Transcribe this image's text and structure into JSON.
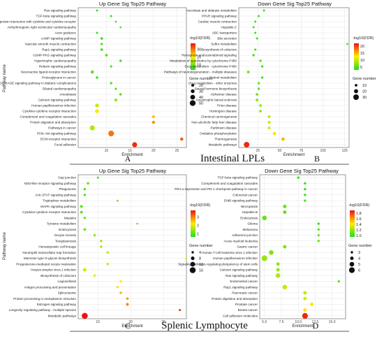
{
  "section_titles": {
    "top": "Intestinal LPLs",
    "bottom": "Splenic Lymphocyte"
  },
  "colors": {
    "low": "#22dd22",
    "mid": "#ffee00",
    "high": "#ee1111",
    "grid": "#e4e4e4"
  },
  "chart_data": [
    {
      "type": "scatter",
      "panel": "A",
      "title": "Up Gene Sig Top25 Pathway",
      "xlabel": "Enrichment",
      "ylabel": "Pathway name",
      "xlim": [
        4,
        27
      ],
      "xticks": [
        10,
        15,
        20,
        25
      ],
      "color_label": "-log10(FDR)",
      "color_ticks": [
        10,
        20,
        30
      ],
      "color_range": [
        3,
        38
      ],
      "size_label": "Gene number",
      "size_ticks": [
        20,
        30,
        40,
        50
      ],
      "size_range": [
        10,
        55
      ],
      "categories": [
        "Ras signaling pathway",
        "TGF-beta signaling pathway",
        "Viral protein interaction with cytokine and cytokine receptor",
        "Arrhythmogenic right ventricular cardiomyopathy",
        "Axon guidance",
        "cAMP signaling pathway",
        "Vascular smooth muscle contraction",
        "Rap1 signaling pathway",
        "cGMP-PKG signaling pathway",
        "Hypertrophic cardiomyopathy",
        "Relaxin signaling pathway",
        "Neuroactive ligand-receptor interaction",
        "Proteoglycans in cancer",
        "AGE-RAGE signaling pathway in diabetic complications",
        "Dilated cardiomyopathy",
        "Amoebiasis",
        "Calcium signaling pathway",
        "Human papillomavirus infection",
        "Cytokine-cytokine receptor interaction",
        "Complement and coagulation cascades",
        "Protein digestion and absorption",
        "Pathways in cancer",
        "PI3K-Akt signaling pathway",
        "ECM-receptor interaction",
        "Focal adhesion"
      ],
      "x": [
        8,
        11,
        12,
        13,
        8,
        9,
        9,
        9,
        10,
        13,
        11,
        7,
        8,
        11,
        12,
        13,
        12,
        8,
        8,
        20,
        20,
        7,
        11,
        26,
        16
      ],
      "fdr": [
        4,
        4,
        4,
        4,
        4,
        6,
        5,
        6,
        7,
        6,
        6,
        8,
        5,
        7,
        6,
        8,
        12,
        16,
        20,
        24,
        28,
        14,
        30,
        32,
        36
      ],
      "gene": [
        12,
        12,
        10,
        10,
        12,
        18,
        14,
        18,
        18,
        16,
        14,
        24,
        16,
        16,
        14,
        16,
        22,
        30,
        32,
        20,
        22,
        42,
        50,
        24,
        42
      ]
    },
    {
      "type": "scatter",
      "panel": "B",
      "title": "Down Gene Sig Top25 Pathway",
      "xlabel": "Enrichment",
      "ylabel": "",
      "xlim": [
        3,
        130
      ],
      "xticks": [
        25,
        50,
        75,
        100,
        125
      ],
      "color_label": "-log10(FDR)",
      "color_ticks": [
        5,
        10,
        15,
        20
      ],
      "color_range": [
        3,
        22
      ],
      "size_label": "Gene number",
      "size_ticks": [
        10,
        20,
        30
      ],
      "size_range": [
        4,
        35
      ],
      "categories": [
        "Ascorbate and aldarate metabolism",
        "PPAR signaling pathway",
        "Cardiac muscle contraction",
        "Hepatitis C",
        "ABC transporters",
        "Bile secretion",
        "Sulfur metabolism",
        "Biosynthesis of cofactors",
        "Retrograde endocannabinoid signaling",
        "Metabolism of xenobiotics by cytochrome P450",
        "Drug metabolism - cytochrome P450",
        "Pathways of neurodegeneration - multiple diseases",
        "Retinol metabolism",
        "Drug metabolism - other enzymes",
        "Steroid hormone biosynthesis",
        "Alzheimer disease",
        "Amyotrophic lateral sclerosis",
        "Prion disease",
        "Huntington disease",
        "Chemical carcinogenesis",
        "Non-alcoholic fatty liver disease",
        "Parkinson disease",
        "Oxidative phosphorylation",
        "Thermogenesis",
        "Metabolic pathways"
      ],
      "x": [
        32,
        26,
        22,
        20,
        22,
        24,
        128,
        22,
        20,
        28,
        30,
        14,
        30,
        26,
        26,
        24,
        24,
        28,
        28,
        38,
        38,
        38,
        44,
        54,
        12
      ],
      "fdr": [
        4,
        4,
        4,
        4,
        4,
        4,
        4,
        5,
        5,
        5,
        5,
        6,
        5,
        6,
        6,
        7,
        7,
        8,
        8,
        10,
        10,
        11,
        13,
        15,
        21
      ],
      "gene": [
        6,
        6,
        6,
        6,
        6,
        6,
        5,
        7,
        8,
        8,
        8,
        10,
        8,
        8,
        8,
        10,
        10,
        10,
        10,
        11,
        11,
        12,
        13,
        14,
        30
      ]
    },
    {
      "type": "scatter",
      "panel": "C",
      "title": "Up Gene Sig Top25 Pathway",
      "xlabel": "Enrichment",
      "ylabel": "Pathway name",
      "xlim": [
        4,
        37
      ],
      "xticks": [
        10,
        20,
        30
      ],
      "color_label": "-log10(FDR)",
      "color_ticks": [
        1,
        2,
        3
      ],
      "color_range": [
        0.6,
        3.8
      ],
      "size_label": "Gene number",
      "size_ticks": [
        4,
        8,
        12,
        16
      ],
      "size_range": [
        2,
        17
      ],
      "categories": [
        "Gap junction",
        "NOD-like receptor signaling pathway",
        "Phagosome",
        "JAK-STAT signaling pathway",
        "Tryptophan metabolism",
        "MAPK signaling pathway",
        "Cytokine-cytokine receptor interaction",
        "Measles",
        "Tyrosine metabolism",
        "Endocytosis",
        "Oocyte meiosis",
        "Toxoplasmosis",
        "Hematopoietic cell lineage",
        "Neutrophil extracellular trap formation",
        "Mannose type O-glycan biosynthesis",
        "Progesterone-mediated oocyte maturation",
        "Herpes simplex virus 1 infection",
        "Biosynthesis of cofactors",
        "Legionellosis",
        "Antigen processing and presentation",
        "Spliceosome",
        "Protein processing in endoplasmic reticulum",
        "Estrogen signaling pathway",
        "Longevity regulating pathway - multiple species",
        "Metabolic pathways"
      ],
      "x": [
        10,
        7,
        6,
        6,
        16,
        5,
        5,
        6,
        22,
        6,
        9,
        11,
        11,
        13,
        37,
        13,
        6,
        9,
        17,
        16,
        17,
        19,
        19,
        35,
        6
      ],
      "fdr": [
        0.9,
        1.0,
        1.0,
        1.0,
        1.1,
        1.0,
        1.0,
        1.1,
        1.1,
        1.2,
        1.4,
        1.5,
        1.6,
        1.7,
        1.8,
        1.8,
        1.9,
        2.0,
        2.2,
        2.3,
        2.5,
        2.7,
        3.0,
        3.6,
        3.8
      ],
      "gene": [
        3,
        4,
        4,
        4,
        2,
        5,
        5,
        4,
        2,
        5,
        4,
        4,
        4,
        4,
        2,
        4,
        8,
        4,
        4,
        4,
        5,
        5,
        5,
        3,
        16
      ]
    },
    {
      "type": "scatter",
      "panel": "D",
      "title": "Down Gene Sig Top25 Pathway",
      "xlabel": "Enrichment",
      "ylabel": "",
      "xlim": [
        4.3,
        17
      ],
      "xticks": [
        5.0,
        7.5,
        10.0,
        12.5,
        15.0
      ],
      "color_label": "-log10(FDR)",
      "color_ticks": [
        1.0,
        1.2,
        1.4,
        1.6,
        1.8
      ],
      "color_range": [
        0.95,
        1.9
      ],
      "size_label": "Gene number",
      "size_ticks": [
        3,
        4,
        5,
        6
      ],
      "size_range": [
        2.5,
        6.5
      ],
      "categories": [
        "TGF-beta signaling pathway",
        "Complement and coagulation cascades",
        "PD-L1 expression and PD-1 checkpoint pathway in cancer",
        "Colorectal cancer",
        "ErbB signaling pathway",
        "Necroptosis",
        "Hepatitis B",
        "Endocytosis",
        "Glioma",
        "Melanoma",
        "Adherens junction",
        "Acute myeloid leukemia",
        "Gastric cancer",
        "Human T-cell leukemia virus 1 infection",
        "Human papillomavirus infection",
        "Signaling pathways regulating pluripotency of stem cells",
        "Calcium signaling pathway",
        "Ras signaling pathway",
        "Endometrial cancer",
        "Rap1 signaling pathway",
        "Pancreatic cancer",
        "Protein digestion and absorption",
        "Prostate cancer",
        "Breast cancer",
        "Cell adhesion molecules"
      ],
      "x": [
        10,
        11,
        11,
        11,
        11,
        8,
        8,
        5,
        13,
        13,
        13,
        13,
        8,
        6,
        5,
        7,
        7,
        7,
        16,
        8,
        11,
        11,
        12,
        11,
        11
      ],
      "fdr": [
        1.0,
        1.0,
        1.0,
        1.0,
        1.05,
        1.1,
        1.1,
        1.1,
        1.0,
        1.05,
        1.1,
        1.1,
        1.15,
        1.15,
        1.2,
        1.2,
        1.2,
        1.25,
        1.1,
        1.3,
        1.3,
        1.35,
        1.4,
        1.45,
        1.85
      ],
      "gene": [
        3,
        3,
        3,
        3,
        3,
        4,
        4,
        5,
        3,
        3,
        3,
        3,
        4,
        5,
        6,
        4,
        4,
        5,
        3,
        5,
        4,
        4,
        4,
        4,
        6
      ]
    }
  ]
}
